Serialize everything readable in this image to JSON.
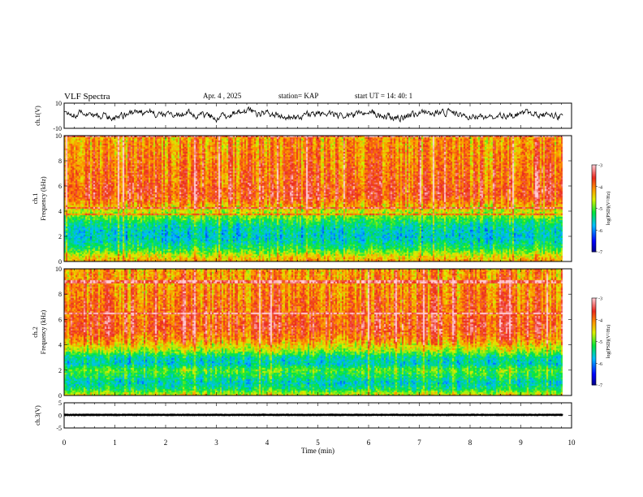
{
  "header": {
    "title": "VLF Spectra",
    "date": "Apr. 4 , 2025",
    "station": "station= KAP",
    "start": "start UT = 14: 40: 1"
  },
  "chart_data": [
    {
      "type": "line",
      "panel": "ch1-waveform",
      "ylabel": "ch.1(V)",
      "ylim": [
        -10,
        10
      ],
      "yticks": [
        "10",
        "-10"
      ],
      "xlim": [
        0,
        10
      ],
      "x_end": 9.83,
      "approx_series": {
        "x": [
          0,
          0.5,
          1,
          1.5,
          2,
          2.5,
          3,
          3.5,
          4,
          4.5,
          5,
          5.5,
          6,
          6.5,
          7,
          7.5,
          8,
          8.5,
          9,
          9.5,
          9.83
        ],
        "y": [
          1,
          2,
          -1,
          3,
          0,
          2,
          -2,
          4,
          1,
          -1,
          2,
          0,
          3,
          -2,
          1,
          3,
          -1,
          0,
          2,
          1,
          -1
        ]
      }
    },
    {
      "type": "heatmap",
      "panel": "ch1-spectrogram",
      "ylabel": "ch.1 Frequency (kHz)",
      "ylim": [
        0,
        10
      ],
      "yticks": [
        "0",
        "2",
        "4",
        "6",
        "8",
        "10"
      ],
      "xlim": [
        0,
        10
      ],
      "x_end": 9.83,
      "colorbar": {
        "label": "log(PSD)(V²/Hz)",
        "range": [
          -7,
          -3
        ],
        "ticks": [
          "-3",
          "-4",
          "-5",
          "-6",
          "-7"
        ]
      },
      "approx_profile": {
        "freq_khz": [
          0,
          0.5,
          1,
          1.5,
          2,
          2.5,
          3,
          3.5,
          4,
          4.5,
          5,
          5.5,
          6,
          6.5,
          7,
          8,
          9,
          10
        ],
        "log_psd": [
          -4.2,
          -4.6,
          -5.2,
          -5.5,
          -5.7,
          -5.6,
          -5.4,
          -5.0,
          -4.6,
          -4.2,
          -3.8,
          -3.7,
          -3.8,
          -3.9,
          -3.9,
          -4.0,
          -4.1,
          -4.2
        ]
      }
    },
    {
      "type": "heatmap",
      "panel": "ch2-spectrogram",
      "ylabel": "ch.2 Frequency (kHz)",
      "ylim": [
        0,
        10
      ],
      "yticks": [
        "0",
        "2",
        "4",
        "6",
        "8",
        "10"
      ],
      "xlim": [
        0,
        10
      ],
      "x_end": 9.83,
      "colorbar": {
        "label": "log(PSD)(V²/Hz)",
        "range": [
          -7,
          -3
        ],
        "ticks": [
          "-3",
          "-4",
          "-5",
          "-6",
          "-7"
        ]
      },
      "approx_profile": {
        "freq_khz": [
          0,
          0.5,
          1,
          1.5,
          2,
          2.5,
          3,
          3.5,
          4,
          4.5,
          5,
          5.5,
          6,
          6.5,
          7,
          8,
          9,
          10
        ],
        "log_psd": [
          -4.5,
          -5.3,
          -5.6,
          -5.3,
          -5.0,
          -5.6,
          -5.5,
          -4.8,
          -4.4,
          -4.0,
          -3.8,
          -3.7,
          -3.8,
          -3.9,
          -3.9,
          -4.0,
          -4.1,
          -4.2
        ]
      }
    },
    {
      "type": "line",
      "panel": "ch3-waveform",
      "ylabel": "ch.3(V)",
      "ylim": [
        -5,
        5
      ],
      "yticks": [
        "5",
        "0",
        "-5"
      ],
      "xlim": [
        0,
        10
      ],
      "x_end": 9.83,
      "approx_series": {
        "level": 0.2,
        "ripple": 0.4
      }
    }
  ],
  "x_axis": {
    "label": "Time (min)",
    "ticks": [
      "0",
      "1",
      "2",
      "3",
      "4",
      "5",
      "6",
      "7",
      "8",
      "9",
      "10"
    ]
  }
}
